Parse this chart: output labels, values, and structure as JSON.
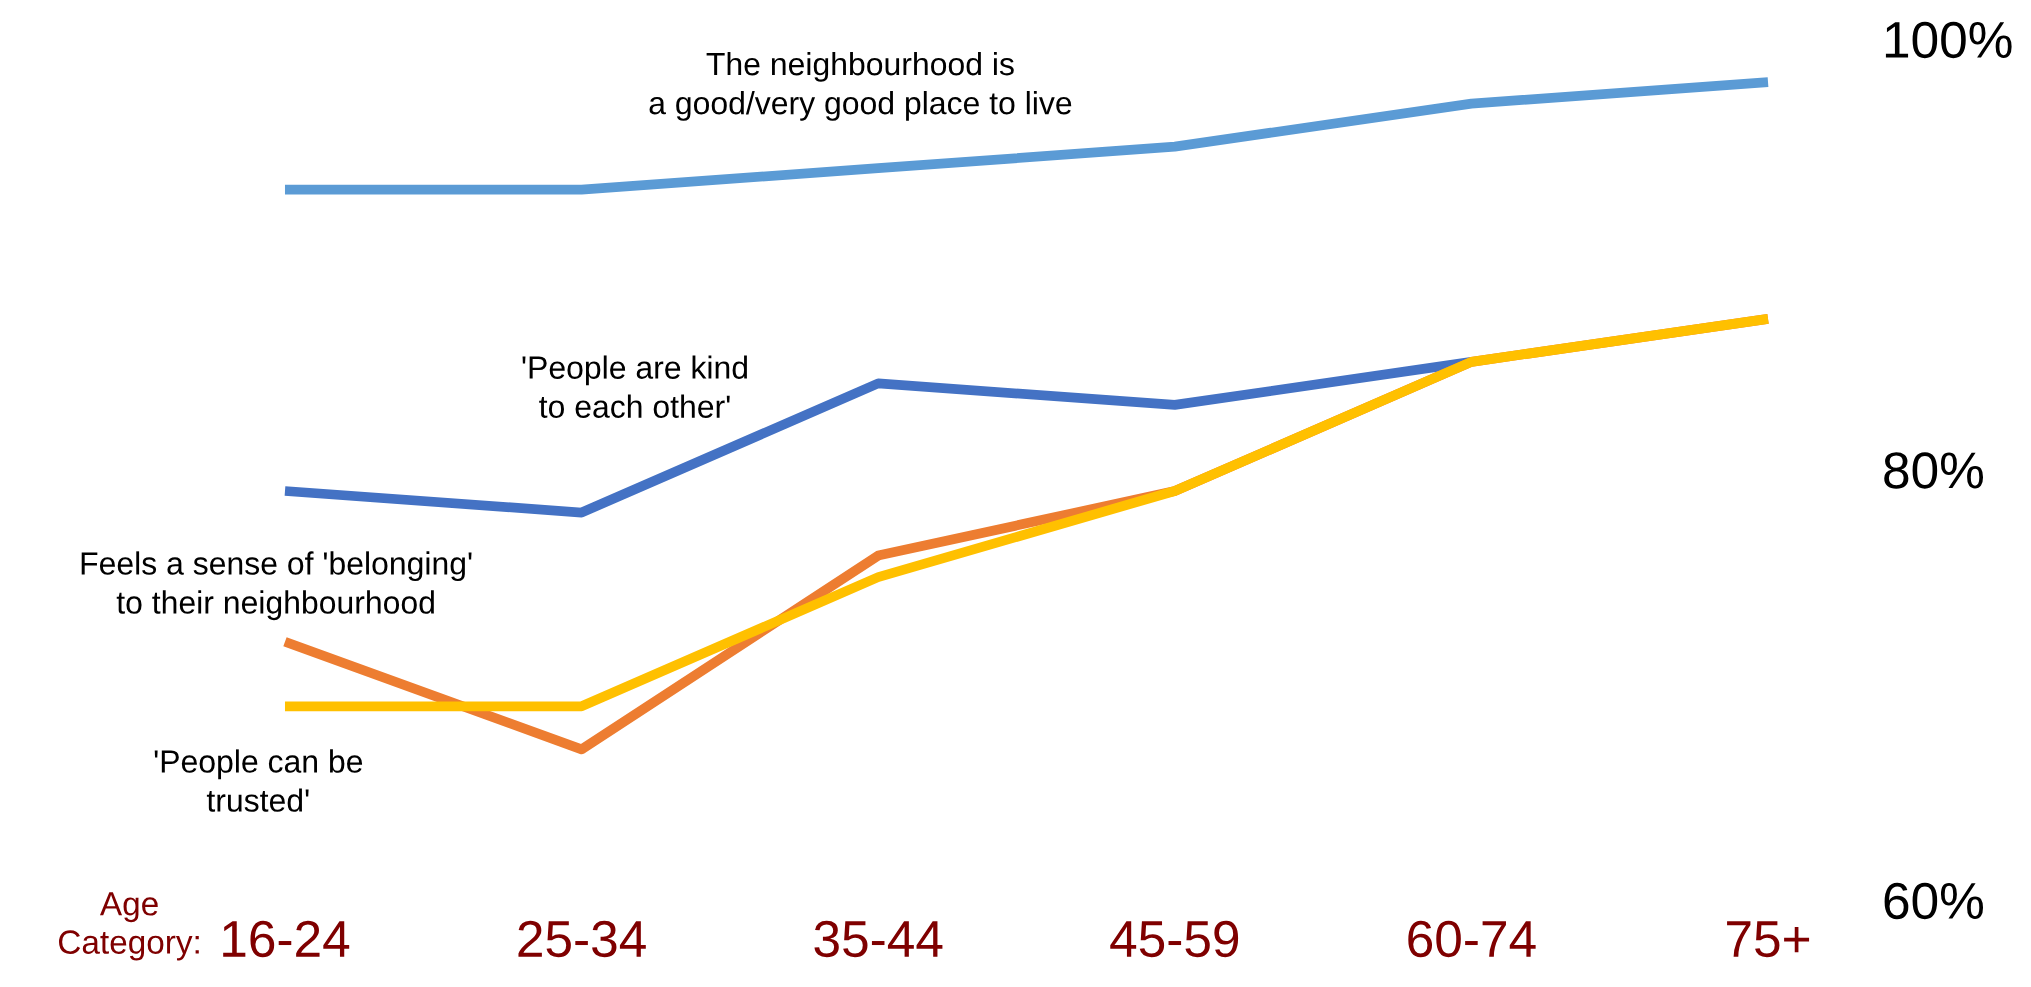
{
  "chart_data": {
    "type": "line",
    "xlabel": "Age\nCategory:",
    "categories": [
      "16-24",
      "25-34",
      "35-44",
      "45-59",
      "60-74",
      "75+"
    ],
    "series": [
      {
        "name": "The neighbourhood is\na good/very good place to live",
        "color": "#5b9bd5",
        "values": [
          93,
          93,
          94,
          95,
          97,
          98
        ]
      },
      {
        "name": "'People are kind\nto each other'",
        "color": "#4472c4",
        "values": [
          79,
          78,
          84,
          83,
          85,
          null
        ]
      },
      {
        "name": "Feels a sense of 'belonging'\nto their neighbourhood",
        "color": "#ed7d31",
        "values": [
          72,
          67,
          76,
          79,
          85,
          87
        ]
      },
      {
        "name": "'People can be\ntrusted'",
        "color": "#ffc000",
        "values": [
          69,
          69,
          75,
          79,
          85,
          87
        ]
      }
    ],
    "ylim": [
      60,
      100
    ],
    "yticks": [
      {
        "value": 60,
        "label": "60%"
      },
      {
        "value": 80,
        "label": "80%"
      },
      {
        "value": 100,
        "label": "100%"
      }
    ],
    "grid": false,
    "marker": "none",
    "line_style": "solid"
  }
}
